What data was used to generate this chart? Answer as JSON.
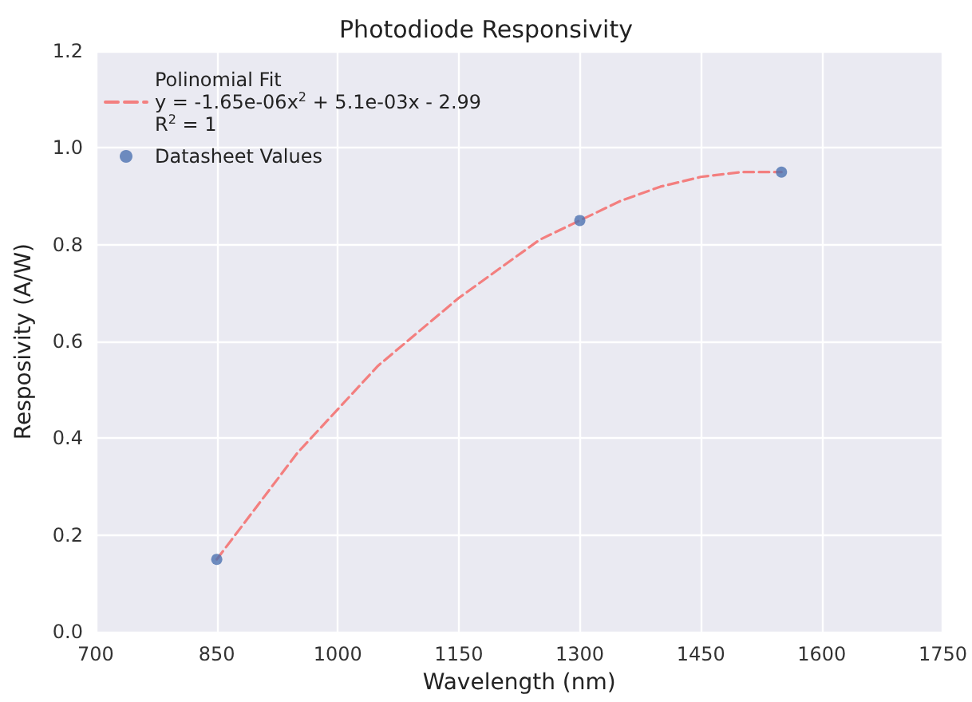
{
  "chart_data": {
    "type": "scatter",
    "title": "Photodiode Responsivity",
    "xlabel": "Wavelength (nm)",
    "ylabel": "Resposivity (A/W)",
    "series": [
      {
        "name": "Polinomial Fit\ny = -1.65e-06x$^{2}$ + 5.1e-03x - 2.99\nR$^{2}$ = 1",
        "type": "line",
        "line_style": "dashed",
        "marker": "none",
        "color": "#f37f7f",
        "x": [
          850,
          900,
          950,
          1000,
          1050,
          1100,
          1150,
          1200,
          1250,
          1300,
          1350,
          1400,
          1450,
          1500,
          1550
        ],
        "values": [
          0.15,
          0.26,
          0.37,
          0.46,
          0.55,
          0.62,
          0.69,
          0.75,
          0.81,
          0.85,
          0.89,
          0.92,
          0.94,
          0.95,
          0.95
        ]
      },
      {
        "name": "Datasheet Values",
        "marker": "circle",
        "color": "#4c72b0",
        "x": [
          850,
          1300,
          1550
        ],
        "values": [
          0.15,
          0.85,
          0.95
        ]
      }
    ],
    "xlim": [
      700,
      1750
    ],
    "xticks": [
      700,
      850,
      1000,
      1150,
      1300,
      1450,
      1600,
      1750
    ],
    "ylim": [
      0,
      1.2
    ],
    "yticks": [
      {
        "value": 0,
        "label": "0.0"
      },
      {
        "value": 0.2,
        "label": "0.2"
      },
      {
        "value": 0.4,
        "label": "0.4"
      },
      {
        "value": 0.6,
        "label": "0.6"
      },
      {
        "value": 0.8,
        "label": "0.8"
      },
      {
        "value": 1.0,
        "label": "1.0"
      },
      {
        "value": 1.2,
        "label": "1.2"
      }
    ],
    "grid": true,
    "legend": "top left"
  }
}
